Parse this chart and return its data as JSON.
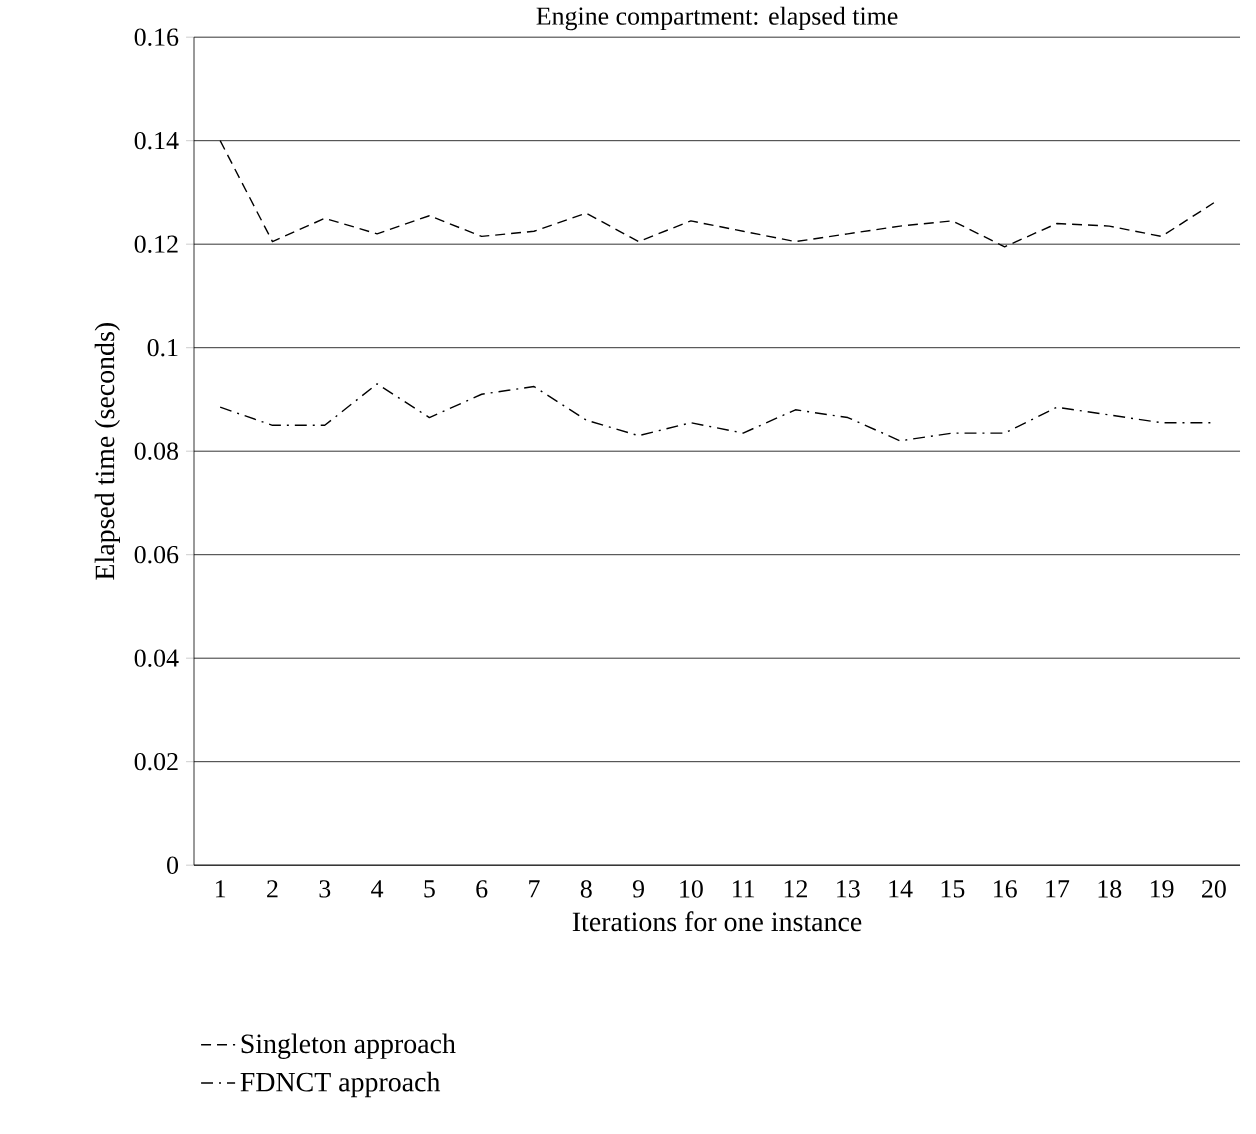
{
  "chart_data": {
    "type": "line",
    "title": "Engine compartment: elapsed time",
    "xlabel": "Iterations for one instance",
    "ylabel": "Elapsed time (seconds)",
    "categories": [
      "1",
      "2",
      "3",
      "4",
      "5",
      "6",
      "7",
      "8",
      "9",
      "10",
      "11",
      "12",
      "13",
      "14",
      "15",
      "16",
      "17",
      "18",
      "19",
      "20"
    ],
    "series": [
      {
        "name": "Singleton approach",
        "color": "#000000",
        "line_style": "dashed",
        "values": [
          0.14,
          0.1205,
          0.125,
          0.122,
          0.1255,
          0.1215,
          0.1225,
          0.126,
          0.1205,
          0.1245,
          0.1225,
          0.1205,
          0.122,
          0.1235,
          0.1245,
          0.1195,
          0.124,
          0.1235,
          0.1215,
          0.128
        ]
      },
      {
        "name": "FDNCT approach",
        "color": "#000000",
        "line_style": "dashdot",
        "values": [
          0.0885,
          0.085,
          0.085,
          0.093,
          0.0865,
          0.091,
          0.0925,
          0.086,
          0.083,
          0.0855,
          0.0835,
          0.088,
          0.0865,
          0.082,
          0.0835,
          0.0835,
          0.0885,
          0.087,
          0.0855,
          0.0855
        ]
      }
    ],
    "ylim": [
      0,
      0.16
    ],
    "yticks": [
      0,
      0.02,
      0.04,
      0.06,
      0.08,
      0.1,
      0.12,
      0.14,
      0.16
    ],
    "grid": "y",
    "legend": "bottom left",
    "marker": "none"
  }
}
